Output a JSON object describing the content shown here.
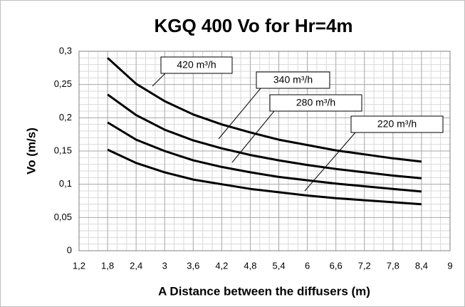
{
  "chart_data": {
    "type": "line",
    "title": "KGQ 400 Vo for Hr=4m",
    "x_label": "A Distance between the diffusers (m)",
    "y_label": "Vo (m/s)",
    "x": [
      1.8,
      2.4,
      3,
      3.6,
      4.2,
      4.8,
      5.4,
      6,
      6.6,
      7.2,
      7.8,
      8.4
    ],
    "series": [
      {
        "name": "420 m³/h",
        "color": "#000000",
        "values": [
          0.29,
          0.251,
          0.225,
          0.205,
          0.19,
          0.178,
          0.167,
          0.159,
          0.151,
          0.145,
          0.139,
          0.134
        ]
      },
      {
        "name": "340 m³/h",
        "color": "#000000",
        "values": [
          0.235,
          0.204,
          0.182,
          0.166,
          0.154,
          0.144,
          0.136,
          0.129,
          0.123,
          0.118,
          0.113,
          0.109
        ]
      },
      {
        "name": "280 m³/h",
        "color": "#000000",
        "values": [
          0.193,
          0.167,
          0.15,
          0.136,
          0.126,
          0.118,
          0.111,
          0.106,
          0.101,
          0.097,
          0.093,
          0.089
        ]
      },
      {
        "name": "220 m³/h",
        "color": "#000000",
        "values": [
          0.152,
          0.132,
          0.118,
          0.107,
          0.1,
          0.093,
          0.088,
          0.083,
          0.079,
          0.076,
          0.073,
          0.07
        ]
      }
    ],
    "xlim": [
      1.2,
      9
    ],
    "xticks": [
      {
        "value": 1.2,
        "label": "1,2"
      },
      {
        "value": 1.8,
        "label": "1,8"
      },
      {
        "value": 2.4,
        "label": "2,4"
      },
      3,
      {
        "value": 3.6,
        "label": "3,6"
      },
      {
        "value": 4.2,
        "label": "4,2"
      },
      {
        "value": 4.8,
        "label": "4,8"
      },
      {
        "value": 5.4,
        "label": "5,4"
      },
      6,
      {
        "value": 6.6,
        "label": "6,6"
      },
      {
        "value": 7.2,
        "label": "7,2"
      },
      {
        "value": 7.8,
        "label": "7,8"
      },
      {
        "value": 8.4,
        "label": "8,4"
      },
      9
    ],
    "ylim": [
      0,
      0.3
    ],
    "yticks": [
      0,
      {
        "value": 0.05,
        "label": "0,05"
      },
      {
        "value": 0.1,
        "label": "0,1"
      },
      {
        "value": 0.15,
        "label": "0,15"
      },
      {
        "value": 0.2,
        "label": "0,2"
      },
      {
        "value": 0.25,
        "label": "0,25"
      },
      {
        "value": 0.3,
        "label": "0,3"
      }
    ],
    "grid": true
  }
}
